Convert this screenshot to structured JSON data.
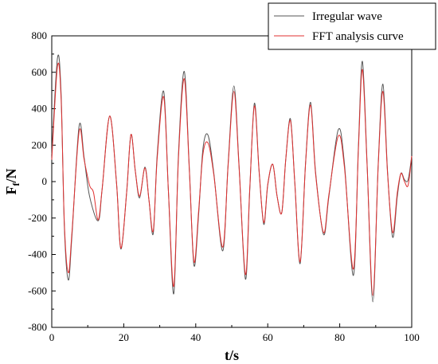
{
  "chart_data": {
    "type": "line",
    "xlabel": "t/s",
    "ylabel_main": "F",
    "ylabel_sub": "f",
    "ylabel_tail": "/N",
    "xlim": [
      0,
      100
    ],
    "ylim": [
      -800,
      800
    ],
    "x_ticks": [
      0,
      20,
      40,
      60,
      80,
      100
    ],
    "y_ticks": [
      -800,
      -600,
      -400,
      -200,
      0,
      200,
      400,
      600,
      800
    ],
    "legend_position": "top-right",
    "grid": false,
    "series": [
      {
        "name": "Irregular wave",
        "color": "#555555",
        "points": [
          [
            0,
            150
          ],
          [
            1.6,
            680
          ],
          [
            2.6,
            480
          ],
          [
            3.5,
            -250
          ],
          [
            4.6,
            -540
          ],
          [
            5.6,
            -300
          ],
          [
            7.6,
            305
          ],
          [
            9.0,
            130
          ],
          [
            10.5,
            -80
          ],
          [
            12.9,
            -215
          ],
          [
            14.0,
            -40
          ],
          [
            16.1,
            360
          ],
          [
            18.0,
            -10
          ],
          [
            19.2,
            -370
          ],
          [
            20.8,
            -60
          ],
          [
            22.0,
            258
          ],
          [
            23.2,
            60
          ],
          [
            24.4,
            -90
          ],
          [
            25.9,
            80
          ],
          [
            27.0,
            -100
          ],
          [
            28.2,
            -285
          ],
          [
            29.3,
            150
          ],
          [
            31.1,
            495
          ],
          [
            32.4,
            -50
          ],
          [
            33.9,
            -615
          ],
          [
            35.2,
            150
          ],
          [
            36.8,
            605
          ],
          [
            38.2,
            80
          ],
          [
            39.5,
            -460
          ],
          [
            40.8,
            -180
          ],
          [
            42.0,
            180
          ],
          [
            43.4,
            255
          ],
          [
            45.0,
            50
          ],
          [
            47.5,
            -380
          ],
          [
            49.0,
            100
          ],
          [
            50.6,
            525
          ],
          [
            52.0,
            100
          ],
          [
            53.8,
            -535
          ],
          [
            55.0,
            -50
          ],
          [
            56.3,
            430
          ],
          [
            57.6,
            60
          ],
          [
            58.9,
            -235
          ],
          [
            60.0,
            -20
          ],
          [
            61.4,
            95
          ],
          [
            62.6,
            -80
          ],
          [
            63.9,
            -170
          ],
          [
            65.0,
            120
          ],
          [
            66.3,
            345
          ],
          [
            67.5,
            0
          ],
          [
            69.0,
            -450
          ],
          [
            70.5,
            100
          ],
          [
            71.9,
            435
          ],
          [
            73.3,
            50
          ],
          [
            75.5,
            -290
          ],
          [
            77.0,
            -80
          ],
          [
            79.6,
            285
          ],
          [
            81.3,
            100
          ],
          [
            83.8,
            -515
          ],
          [
            85.2,
            200
          ],
          [
            86.3,
            660
          ],
          [
            87.6,
            100
          ],
          [
            89.2,
            -660
          ],
          [
            90.7,
            100
          ],
          [
            92.0,
            535
          ],
          [
            93.3,
            50
          ],
          [
            94.7,
            -305
          ],
          [
            96.0,
            -80
          ],
          [
            97.0,
            45
          ],
          [
            98.0,
            10
          ],
          [
            99.0,
            10
          ],
          [
            100,
            140
          ]
        ]
      },
      {
        "name": "FFT analysis curve",
        "color": "#e03030",
        "points": [
          [
            0,
            120
          ],
          [
            1.6,
            635
          ],
          [
            2.6,
            450
          ],
          [
            3.5,
            -230
          ],
          [
            4.6,
            -500
          ],
          [
            5.6,
            -280
          ],
          [
            7.6,
            275
          ],
          [
            9.0,
            120
          ],
          [
            10.5,
            -20
          ],
          [
            11.6,
            -60
          ],
          [
            12.9,
            -210
          ],
          [
            14.0,
            -40
          ],
          [
            16.1,
            360
          ],
          [
            18.0,
            -10
          ],
          [
            19.2,
            -365
          ],
          [
            20.8,
            -60
          ],
          [
            22.0,
            258
          ],
          [
            23.2,
            60
          ],
          [
            24.4,
            -80
          ],
          [
            25.9,
            75
          ],
          [
            27.0,
            -100
          ],
          [
            28.2,
            -270
          ],
          [
            29.3,
            130
          ],
          [
            31.1,
            465
          ],
          [
            32.4,
            -50
          ],
          [
            33.9,
            -575
          ],
          [
            35.2,
            130
          ],
          [
            36.8,
            565
          ],
          [
            38.2,
            70
          ],
          [
            39.5,
            -440
          ],
          [
            40.8,
            -160
          ],
          [
            42.0,
            150
          ],
          [
            43.4,
            212
          ],
          [
            45.0,
            40
          ],
          [
            47.5,
            -360
          ],
          [
            49.0,
            90
          ],
          [
            50.6,
            495
          ],
          [
            52.0,
            90
          ],
          [
            53.8,
            -510
          ],
          [
            55.0,
            -40
          ],
          [
            56.3,
            415
          ],
          [
            57.6,
            55
          ],
          [
            58.9,
            -225
          ],
          [
            60.0,
            -15
          ],
          [
            61.4,
            95
          ],
          [
            62.6,
            -80
          ],
          [
            63.9,
            -170
          ],
          [
            65.0,
            120
          ],
          [
            66.3,
            335
          ],
          [
            67.5,
            0
          ],
          [
            69.0,
            -440
          ],
          [
            70.5,
            95
          ],
          [
            71.9,
            420
          ],
          [
            73.3,
            40
          ],
          [
            75.5,
            -280
          ],
          [
            77.0,
            -70
          ],
          [
            79.6,
            250
          ],
          [
            81.3,
            80
          ],
          [
            83.8,
            -480
          ],
          [
            85.2,
            180
          ],
          [
            86.3,
            615
          ],
          [
            87.6,
            90
          ],
          [
            89.2,
            -625
          ],
          [
            90.7,
            90
          ],
          [
            92.0,
            495
          ],
          [
            93.3,
            40
          ],
          [
            94.7,
            -280
          ],
          [
            96.0,
            -60
          ],
          [
            97.0,
            45
          ],
          [
            98.0,
            0
          ],
          [
            99.0,
            -20
          ],
          [
            100,
            140
          ]
        ]
      }
    ]
  }
}
